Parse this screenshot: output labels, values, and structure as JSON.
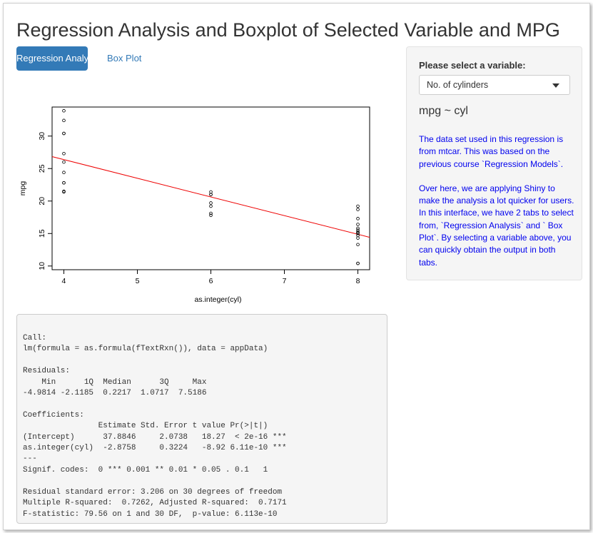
{
  "page_title": "Regression Analysis and Boxplot of Selected Variable and MPG",
  "tabs": [
    {
      "label": "Regression Analysis",
      "active": true
    },
    {
      "label": "Box Plot",
      "active": false
    }
  ],
  "sidebar": {
    "select_label": "Please select a variable:",
    "selected_value": "No. of cylinders",
    "formula": "mpg ~ cyl",
    "description": [
      "The data set used in this regression is from mtcar. This was based on the previous course `Regression Models`.",
      "Over here, we are applying Shiny to make the analysis a lot quicker for users. In this interface, we have 2 tabs to select from, `Regression Analysis` and ` Box Plot`. By selecting a variable above, you can quickly obtain the output in both tabs."
    ]
  },
  "regression_output": "Call:\nlm(formula = as.formula(fTextRxn()), data = appData)\n\nResiduals:\n    Min      1Q  Median      3Q     Max \n-4.9814 -2.1185  0.2217  1.0717  7.5186 \n\nCoefficients:\n                Estimate Std. Error t value Pr(>|t|)    \n(Intercept)      37.8846     2.0738   18.27  < 2e-16 ***\nas.integer(cyl)  -2.8758     0.3224   -8.92 6.11e-10 ***\n---\nSignif. codes:  0 *** 0.001 ** 0.01 * 0.05 . 0.1   1\n\nResidual standard error: 3.206 on 30 degrees of freedom\nMultiple R-squared:  0.7262, Adjusted R-squared:  0.7171\nF-statistic: 79.56 on 1 and 30 DF,  p-value: 6.113e-10",
  "colors": {
    "accent": "#337ab7",
    "description_text": "#0000ee",
    "fit_line": "#ee0000"
  },
  "chart_data": {
    "type": "scatter",
    "xlabel": "as.integer(cyl)",
    "ylabel": "mpg",
    "x_ticks": [
      4,
      5,
      6,
      7,
      8
    ],
    "y_ticks": [
      10,
      15,
      20,
      25,
      30
    ],
    "xlim": [
      3.84,
      8.16
    ],
    "ylim": [
      9.43,
      34.47
    ],
    "points": [
      {
        "x": 4,
        "y": 22.8
      },
      {
        "x": 4,
        "y": 24.4
      },
      {
        "x": 4,
        "y": 22.8
      },
      {
        "x": 4,
        "y": 32.4
      },
      {
        "x": 4,
        "y": 30.4
      },
      {
        "x": 4,
        "y": 33.9
      },
      {
        "x": 4,
        "y": 21.5
      },
      {
        "x": 4,
        "y": 27.3
      },
      {
        "x": 4,
        "y": 26.0
      },
      {
        "x": 4,
        "y": 30.4
      },
      {
        "x": 4,
        "y": 21.4
      },
      {
        "x": 6,
        "y": 21.0
      },
      {
        "x": 6,
        "y": 21.0
      },
      {
        "x": 6,
        "y": 21.4
      },
      {
        "x": 6,
        "y": 18.1
      },
      {
        "x": 6,
        "y": 19.2
      },
      {
        "x": 6,
        "y": 17.8
      },
      {
        "x": 6,
        "y": 19.7
      },
      {
        "x": 8,
        "y": 18.7
      },
      {
        "x": 8,
        "y": 14.3
      },
      {
        "x": 8,
        "y": 16.4
      },
      {
        "x": 8,
        "y": 17.3
      },
      {
        "x": 8,
        "y": 15.2
      },
      {
        "x": 8,
        "y": 10.4
      },
      {
        "x": 8,
        "y": 10.4
      },
      {
        "x": 8,
        "y": 14.7
      },
      {
        "x": 8,
        "y": 15.5
      },
      {
        "x": 8,
        "y": 15.2
      },
      {
        "x": 8,
        "y": 13.3
      },
      {
        "x": 8,
        "y": 19.2
      },
      {
        "x": 8,
        "y": 15.8
      },
      {
        "x": 8,
        "y": 15.0
      }
    ],
    "fit_line": {
      "intercept": 37.8846,
      "slope": -2.8758
    }
  }
}
